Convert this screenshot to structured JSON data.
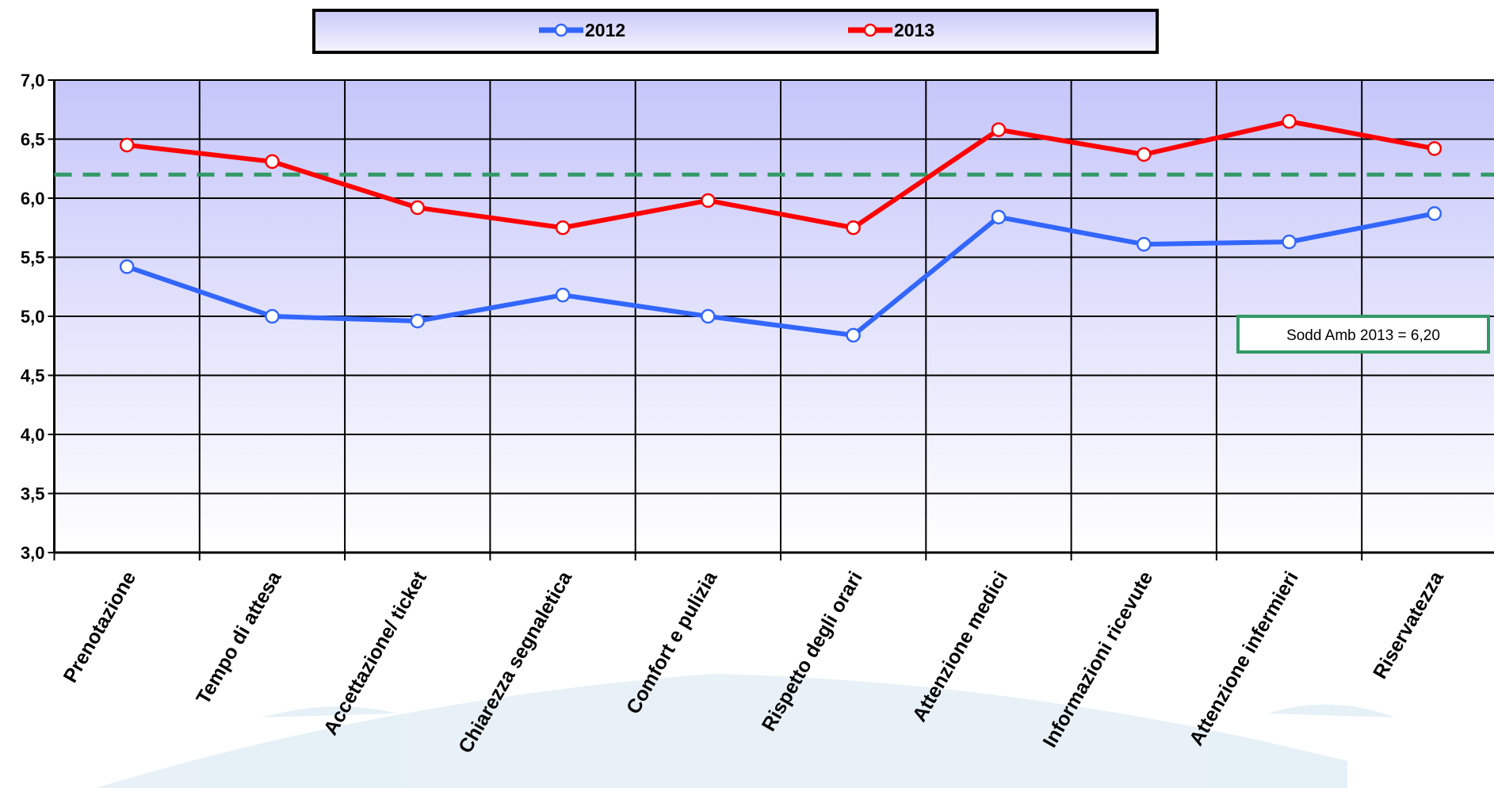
{
  "chart_data": {
    "type": "line",
    "categories": [
      "Prenotazione",
      "Tempo di attesa",
      "Accettazione/ ticket",
      "Chiarezza segnaletica",
      "Comfort e pulizia",
      "Rispetto degli orari",
      "Attenzione medici",
      "Informazioni ricevute",
      "Attenzione infermieri",
      "Riservatezza"
    ],
    "series": [
      {
        "name": "2012",
        "color": "#3366ff",
        "values": [
          5.42,
          5.0,
          4.96,
          5.18,
          5.0,
          4.84,
          5.84,
          5.61,
          5.63,
          5.87
        ]
      },
      {
        "name": "2013",
        "color": "#ff0000",
        "values": [
          6.45,
          6.31,
          5.92,
          5.75,
          5.98,
          5.75,
          6.58,
          6.37,
          6.65,
          6.42
        ]
      }
    ],
    "ylim": [
      3,
      7
    ],
    "yticks": [
      {
        "value": 3,
        "label": "3,0"
      },
      {
        "value": 3.5,
        "label": "3,5"
      },
      {
        "value": 4,
        "label": "4,0"
      },
      {
        "value": 4.5,
        "label": "4,5"
      },
      {
        "value": 5,
        "label": "5,0"
      },
      {
        "value": 5.5,
        "label": "5,5"
      },
      {
        "value": 6,
        "label": "6,0"
      },
      {
        "value": 6.5,
        "label": "6,5"
      },
      {
        "value": 7,
        "label": "7,0"
      }
    ],
    "grid": true,
    "legend": "top",
    "reference_line": {
      "value": 6.2,
      "color": "#339966",
      "label": "Sodd Amb  2013 = 6,20"
    }
  }
}
